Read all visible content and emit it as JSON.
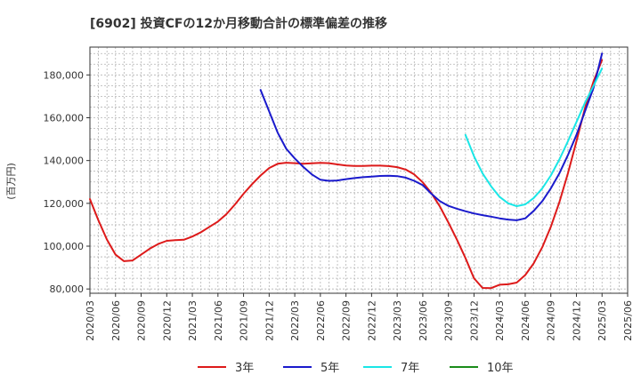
{
  "chart_data": {
    "type": "line",
    "title": "[6902]  投資CFの12か月移動合計の標準偏差の推移",
    "ylabel": "(百万円)",
    "xlabel": "",
    "ylim": [
      78000,
      193000
    ],
    "y_ticks": [
      80000,
      100000,
      120000,
      140000,
      160000,
      180000
    ],
    "y_tick_labels": [
      "80,000",
      "100,000",
      "120,000",
      "140,000",
      "160,000",
      "180,000"
    ],
    "x_ticks": [
      "2020/03",
      "2020/06",
      "2020/09",
      "2020/12",
      "2021/03",
      "2021/06",
      "2021/09",
      "2021/12",
      "2022/03",
      "2022/06",
      "2022/09",
      "2022/12",
      "2023/03",
      "2023/06",
      "2023/09",
      "2023/12",
      "2024/03",
      "2024/06",
      "2024/09",
      "2024/12",
      "2025/03",
      "2025/06"
    ],
    "grid": true,
    "legend_position": "bottom",
    "series": [
      {
        "name": "3年",
        "color": "#dd1a1a",
        "x": [
          "2020/03",
          "2020/04",
          "2020/05",
          "2020/06",
          "2020/07",
          "2020/08",
          "2020/09",
          "2020/10",
          "2020/11",
          "2020/12",
          "2021/01",
          "2021/02",
          "2021/03",
          "2021/04",
          "2021/05",
          "2021/06",
          "2021/07",
          "2021/08",
          "2021/09",
          "2021/10",
          "2021/11",
          "2021/12",
          "2022/01",
          "2022/02",
          "2022/03",
          "2022/04",
          "2022/05",
          "2022/06",
          "2022/07",
          "2022/08",
          "2022/09",
          "2022/10",
          "2022/11",
          "2022/12",
          "2023/01",
          "2023/02",
          "2023/03",
          "2023/04",
          "2023/05",
          "2023/06",
          "2023/07",
          "2023/08",
          "2023/09",
          "2023/10",
          "2023/11",
          "2023/12",
          "2024/01",
          "2024/02",
          "2024/03",
          "2024/04",
          "2024/05",
          "2024/06",
          "2024/07",
          "2024/08",
          "2024/09",
          "2024/10",
          "2024/11",
          "2024/12",
          "2025/01",
          "2025/02",
          "2025/03"
        ],
        "values": [
          122000,
          112000,
          103000,
          96000,
          93000,
          93300,
          96000,
          98800,
          101000,
          102500,
          102800,
          103000,
          104500,
          106500,
          109000,
          111500,
          115000,
          119500,
          124500,
          129000,
          133000,
          136500,
          138500,
          139000,
          138800,
          138500,
          138700,
          138900,
          138800,
          138200,
          137700,
          137500,
          137500,
          137600,
          137600,
          137400,
          136900,
          135800,
          133500,
          129800,
          124800,
          118500,
          111000,
          103000,
          94500,
          85000,
          80500,
          80400,
          82000,
          82200,
          83000,
          86500,
          92000,
          99500,
          109000,
          120500,
          134000,
          149000,
          164500,
          177000,
          187000
        ]
      },
      {
        "name": "5年",
        "color": "#1a1acc",
        "x": [
          "2021/11",
          "2021/12",
          "2022/01",
          "2022/02",
          "2022/03",
          "2022/04",
          "2022/05",
          "2022/06",
          "2022/07",
          "2022/08",
          "2022/09",
          "2022/10",
          "2022/11",
          "2022/12",
          "2023/01",
          "2023/02",
          "2023/03",
          "2023/04",
          "2023/05",
          "2023/06",
          "2023/07",
          "2023/08",
          "2023/09",
          "2023/10",
          "2023/11",
          "2023/12",
          "2024/01",
          "2024/02",
          "2024/03",
          "2024/04",
          "2024/05",
          "2024/06",
          "2024/07",
          "2024/08",
          "2024/09",
          "2024/10",
          "2024/11",
          "2024/12",
          "2025/01",
          "2025/02",
          "2025/03"
        ],
        "values": [
          173000,
          163000,
          153000,
          145500,
          141000,
          137000,
          133500,
          131000,
          130500,
          130700,
          131300,
          131800,
          132200,
          132500,
          132800,
          132900,
          132700,
          132000,
          130500,
          128500,
          124500,
          121000,
          118800,
          117500,
          116300,
          115300,
          114500,
          113800,
          113000,
          112400,
          112100,
          113000,
          116500,
          121000,
          127000,
          134000,
          142500,
          152000,
          163000,
          174000,
          190000
        ]
      },
      {
        "name": "7年",
        "color": "#1ae6e6",
        "x": [
          "2023/11",
          "2023/12",
          "2024/01",
          "2024/02",
          "2024/03",
          "2024/04",
          "2024/05",
          "2024/06",
          "2024/07",
          "2024/08",
          "2024/09",
          "2024/10",
          "2024/11",
          "2024/12",
          "2025/01",
          "2025/02",
          "2025/03"
        ],
        "values": [
          152000,
          142000,
          134000,
          128000,
          123000,
          120000,
          118700,
          119500,
          122500,
          127000,
          133000,
          140500,
          149000,
          158000,
          167000,
          175000,
          183000
        ]
      },
      {
        "name": "10年",
        "color": "#1a8c1a",
        "x": [],
        "values": []
      }
    ]
  }
}
